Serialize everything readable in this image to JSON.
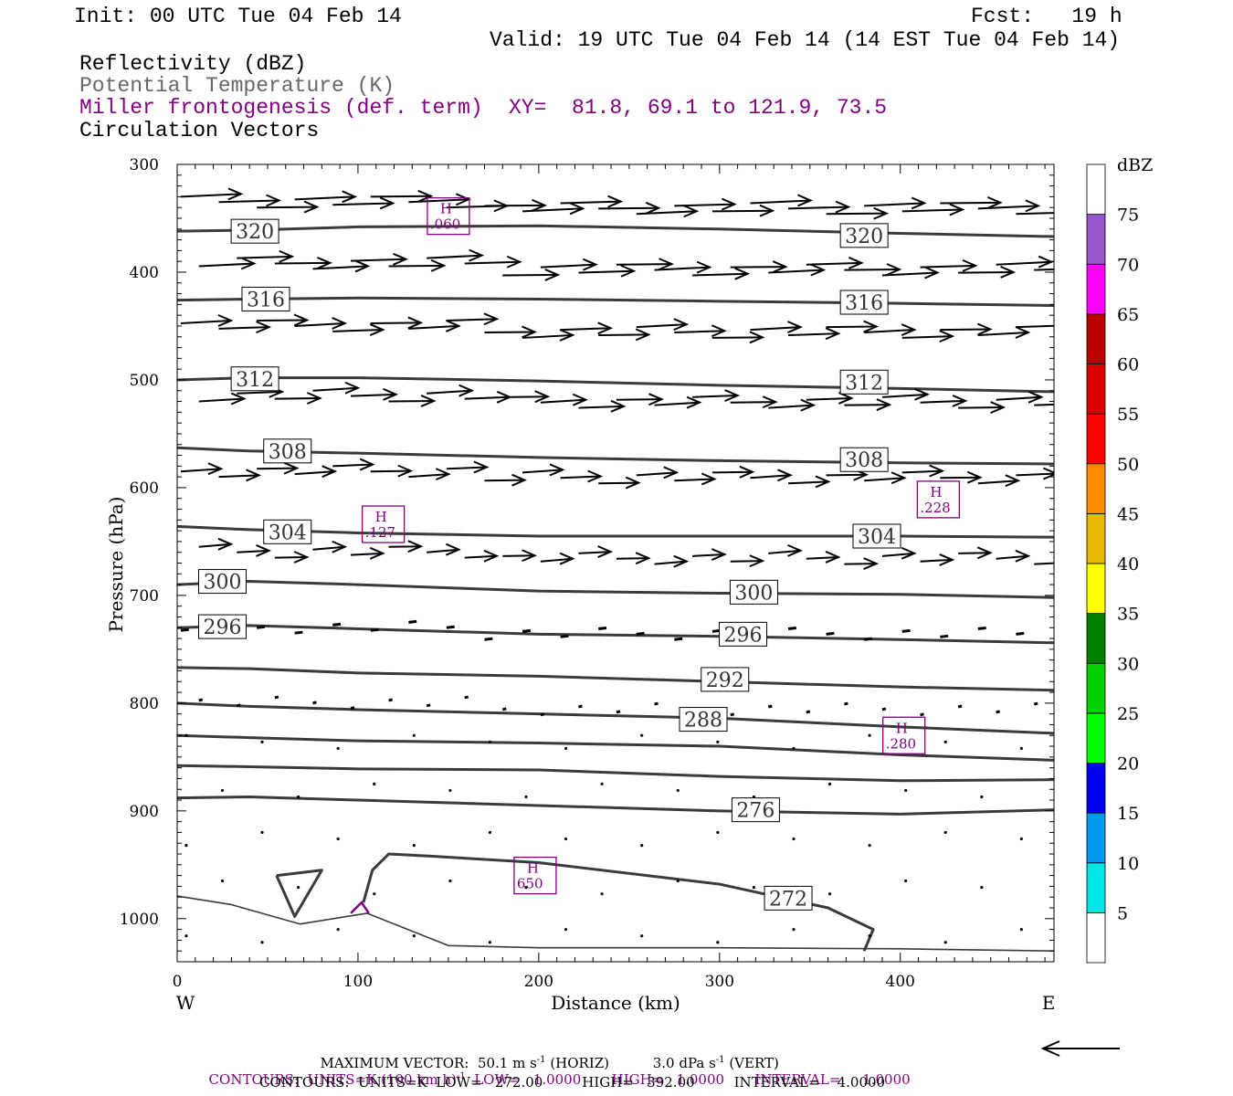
{
  "header": {
    "init": "Init: 00 UTC Tue 04 Feb 14",
    "fcst": "Fcst:   19 h",
    "valid": "Valid: 19 UTC Tue 04 Feb 14 (14 EST Tue 04 Feb 14)",
    "field1": "Reflectivity (dBZ)",
    "field2": "Potential Temperature (K)",
    "field3": "Miller frontogenesis (def. term)",
    "xy": "XY=  81.8, 69.1 to 121.9, 73.5",
    "field4": "Circulation Vectors"
  },
  "colors": {
    "theta": "#3a3a3a",
    "fronto": "#800080",
    "vectors": "#000000"
  },
  "chart_data": {
    "type": "contour-cross-section",
    "xlabel": "Distance (km)",
    "ylabel": "Pressure (hPa)",
    "x_ticks": [
      0,
      100,
      200,
      300,
      400
    ],
    "x_tick_labels": [
      "0",
      "100",
      "200",
      "300",
      "400"
    ],
    "y_ticks": [
      300,
      400,
      500,
      600,
      700,
      800,
      900,
      1000
    ],
    "y_tick_labels": [
      "300",
      "400",
      "500",
      "600",
      "700",
      "800",
      "900",
      "1000"
    ],
    "xlim": [
      0,
      485
    ],
    "ylim": [
      1040,
      300
    ],
    "west_label": "W",
    "east_label": "E",
    "theta_contours": [
      {
        "label": "320",
        "points": [
          [
            0,
            362
          ],
          [
            40,
            361
          ],
          [
            100,
            358
          ],
          [
            200,
            357
          ],
          [
            300,
            360
          ],
          [
            400,
            364
          ],
          [
            485,
            367
          ]
        ],
        "label_at": [
          [
            43,
            362
          ],
          [
            380,
            366
          ]
        ]
      },
      {
        "label": "316",
        "points": [
          [
            0,
            426
          ],
          [
            40,
            425
          ],
          [
            100,
            424
          ],
          [
            200,
            425
          ],
          [
            300,
            427
          ],
          [
            400,
            429
          ],
          [
            485,
            431
          ]
        ],
        "label_at": [
          [
            49,
            425
          ],
          [
            380,
            428
          ]
        ]
      },
      {
        "label": "312",
        "points": [
          [
            0,
            500
          ],
          [
            40,
            498
          ],
          [
            100,
            498
          ],
          [
            200,
            501
          ],
          [
            300,
            505
          ],
          [
            400,
            508
          ],
          [
            485,
            511
          ]
        ],
        "label_at": [
          [
            43,
            499
          ],
          [
            380,
            502
          ]
        ]
      },
      {
        "label": "308",
        "points": [
          [
            0,
            563
          ],
          [
            40,
            566
          ],
          [
            100,
            568
          ],
          [
            200,
            572
          ],
          [
            300,
            575
          ],
          [
            400,
            577
          ],
          [
            485,
            578
          ]
        ],
        "label_at": [
          [
            61,
            566
          ],
          [
            380,
            574
          ]
        ]
      },
      {
        "label": "304",
        "points": [
          [
            0,
            636
          ],
          [
            40,
            639
          ],
          [
            100,
            642
          ],
          [
            200,
            645
          ],
          [
            300,
            645
          ],
          [
            400,
            645
          ],
          [
            485,
            646
          ]
        ],
        "label_at": [
          [
            61,
            641
          ],
          [
            387,
            645
          ]
        ]
      },
      {
        "label": "300",
        "points": [
          [
            0,
            690
          ],
          [
            40,
            687
          ],
          [
            100,
            690
          ],
          [
            200,
            696
          ],
          [
            300,
            698
          ],
          [
            400,
            699
          ],
          [
            485,
            702
          ]
        ],
        "label_at": [
          [
            25,
            687
          ],
          [
            319,
            697
          ]
        ]
      },
      {
        "label": "296",
        "points": [
          [
            0,
            730
          ],
          [
            40,
            728
          ],
          [
            100,
            731
          ],
          [
            200,
            736
          ],
          [
            300,
            738
          ],
          [
            400,
            741
          ],
          [
            485,
            744
          ]
        ],
        "label_at": [
          [
            25,
            729
          ],
          [
            313,
            736
          ]
        ]
      },
      {
        "label": "292",
        "points": [
          [
            0,
            767
          ],
          [
            40,
            768
          ],
          [
            100,
            772
          ],
          [
            200,
            775
          ],
          [
            300,
            780
          ],
          [
            400,
            785
          ],
          [
            485,
            788
          ]
        ],
        "label_at": [
          [
            303,
            778
          ]
        ]
      },
      {
        "label": "288",
        "points": [
          [
            0,
            800
          ],
          [
            40,
            803
          ],
          [
            100,
            806
          ],
          [
            200,
            810
          ],
          [
            300,
            814
          ],
          [
            400,
            822
          ],
          [
            485,
            828
          ]
        ],
        "label_at": [
          [
            291,
            815
          ]
        ]
      },
      {
        "label": "",
        "points": [
          [
            0,
            830
          ],
          [
            40,
            832
          ],
          [
            100,
            835
          ],
          [
            200,
            837
          ],
          [
            300,
            840
          ],
          [
            400,
            848
          ],
          [
            485,
            853
          ]
        ],
        "label_at": []
      },
      {
        "label": "",
        "points": [
          [
            0,
            858
          ],
          [
            40,
            859
          ],
          [
            100,
            861
          ],
          [
            200,
            862
          ],
          [
            300,
            868
          ],
          [
            400,
            872
          ],
          [
            485,
            871
          ]
        ],
        "label_at": []
      },
      {
        "label": "276",
        "points": [
          [
            0,
            888
          ],
          [
            40,
            887
          ],
          [
            100,
            890
          ],
          [
            200,
            895
          ],
          [
            300,
            900
          ],
          [
            400,
            903
          ],
          [
            485,
            899
          ]
        ],
        "label_at": [
          [
            320,
            899
          ]
        ]
      },
      {
        "label": "272",
        "points": [
          [
            103,
            985
          ],
          [
            108,
            955
          ],
          [
            117,
            940
          ],
          [
            140,
            942
          ],
          [
            200,
            948
          ],
          [
            300,
            968
          ],
          [
            360,
            990
          ],
          [
            385,
            1010
          ],
          [
            380,
            1030
          ]
        ],
        "label_at": [
          [
            338,
            981
          ]
        ]
      },
      {
        "label": "",
        "points": [
          [
            0,
            979
          ],
          [
            30,
            987
          ],
          [
            68,
            1005
          ],
          [
            105,
            995
          ],
          [
            150,
            1025
          ],
          [
            200,
            1027
          ],
          [
            300,
            1027
          ],
          [
            400,
            1028
          ],
          [
            485,
            1030
          ]
        ],
        "label_at": []
      },
      {
        "label": "",
        "points": [
          [
            55,
            960
          ],
          [
            80,
            955
          ],
          [
            65,
            998
          ],
          [
            55,
            960
          ]
        ],
        "label_at": []
      }
    ],
    "fronto_highs": [
      {
        "label": "H",
        "value": ".060",
        "at": [
          150,
          348
        ]
      },
      {
        "label": "H",
        "value": ".127",
        "at": [
          114,
          634
        ]
      },
      {
        "label": "H",
        "value": ".228",
        "at": [
          421,
          611
        ]
      },
      {
        "label": "H",
        "value": ".280",
        "at": [
          402,
          830
        ]
      },
      {
        "label": "H",
        "value": "650",
        "at": [
          198,
          960
        ]
      }
    ],
    "fronto_arc": [
      [
        96,
        995
      ],
      [
        102,
        985
      ],
      [
        106,
        995
      ]
    ],
    "colorbar": {
      "unit": "dBZ",
      "levels": [
        "5",
        "10",
        "15",
        "20",
        "25",
        "30",
        "35",
        "40",
        "45",
        "50",
        "55",
        "60",
        "65",
        "70",
        "75"
      ],
      "colors": [
        "#ffffff",
        "#00e5e5",
        "#0099ee",
        "#0000f0",
        "#00ff00",
        "#00d000",
        "#008000",
        "#ffff00",
        "#e6b800",
        "#ff8c00",
        "#ff0000",
        "#dd0000",
        "#bb0000",
        "#ff00ff",
        "#9955cc",
        "#ffffff"
      ]
    },
    "vector_rows": [
      {
        "p": 335,
        "len": 0.6
      },
      {
        "p": 392,
        "len": 0.55
      },
      {
        "p": 450,
        "len": 0.5
      },
      {
        "p": 515,
        "len": 0.45
      },
      {
        "p": 585,
        "len": 0.4
      },
      {
        "p": 660,
        "len": 0.32
      },
      {
        "p": 730,
        "len": 0.08
      },
      {
        "p": 800,
        "len": 0.03
      }
    ]
  },
  "footer": {
    "maxvec_label": "MAXIMUM VECTOR:",
    "maxvec_horiz": "50.1 m s",
    "maxvec_horiz_unit": " (HORIZ)",
    "maxvec_vert": "3.0 dPa s",
    "maxvec_vert_unit": " (VERT)",
    "sup": "-1",
    "contours1_a": "CONTOURS:  UNITS=K (100 km h)",
    "contours1_b": "  LOW=   1.0000       HIGH=   1.0000       INTERVAL=     1.0000",
    "contours2": "CONTOURS:  UNITS=K  LOW=   272.00         HIGH=   392.00         INTERVAL=    4.0000"
  }
}
